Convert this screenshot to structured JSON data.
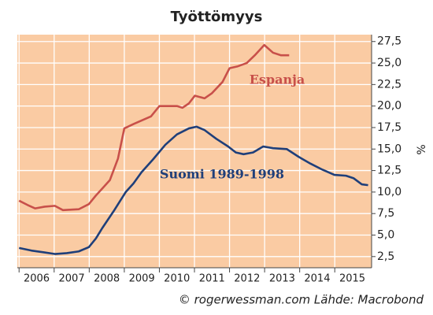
{
  "chart_data": {
    "type": "line",
    "title": "Työttömyys",
    "y_label": "%",
    "footer": "© rogerwessman.com Lähde: Macrobond",
    "grid": true,
    "background": "#facba3",
    "xlim": [
      2005.95,
      2016.05
    ],
    "xticks": [
      2006,
      2007,
      2008,
      2009,
      2010,
      2011,
      2012,
      2013,
      2014,
      2015
    ],
    "ylim": [
      1.2,
      28.3
    ],
    "yticks": [
      {
        "value": 2.5,
        "label": "2,5"
      },
      {
        "value": 5,
        "label": "5,0"
      },
      {
        "value": 7.5,
        "label": "7,5"
      },
      {
        "value": 10,
        "label": "10,0"
      },
      {
        "value": 12.5,
        "label": "12,5"
      },
      {
        "value": 15,
        "label": "15,0"
      },
      {
        "value": 17.5,
        "label": "17,5"
      },
      {
        "value": 20,
        "label": "20,0"
      },
      {
        "value": 22.5,
        "label": "22,5"
      },
      {
        "value": 25,
        "label": "25,0"
      },
      {
        "value": 27.5,
        "label": "27,5"
      }
    ],
    "series": [
      {
        "name": "Espanja",
        "color": "#c8504a",
        "x": [
          2006.0,
          2006.24,
          2006.46,
          2006.73,
          2007.02,
          2007.25,
          2007.7,
          2007.99,
          2008.19,
          2008.37,
          2008.59,
          2008.82,
          2009.0,
          2009.26,
          2009.76,
          2010.0,
          2010.5,
          2010.66,
          2010.84,
          2011.01,
          2011.29,
          2011.5,
          2011.8,
          2012.0,
          2012.22,
          2012.49,
          2012.72,
          2012.99,
          2013.24,
          2013.47,
          2013.7
        ],
        "values": [
          9.0,
          8.5,
          8.1,
          8.3,
          8.4,
          7.9,
          8.0,
          8.6,
          9.6,
          10.4,
          11.4,
          13.9,
          17.4,
          17.9,
          18.8,
          20.0,
          20.0,
          19.8,
          20.3,
          21.2,
          20.9,
          21.5,
          22.8,
          24.4,
          24.6,
          25.0,
          25.9,
          27.1,
          26.2,
          25.9,
          25.9
        ]
      },
      {
        "name": "Suomi 1989-1998",
        "color": "#1f3f7a",
        "x": [
          2006.0,
          2006.35,
          2006.69,
          2007.02,
          2007.36,
          2007.7,
          2007.99,
          2008.19,
          2008.37,
          2008.7,
          2009.04,
          2009.26,
          2009.49,
          2009.82,
          2010.17,
          2010.5,
          2010.84,
          2011.06,
          2011.29,
          2011.62,
          2011.96,
          2012.18,
          2012.4,
          2012.67,
          2012.96,
          2013.24,
          2013.63,
          2013.97,
          2014.31,
          2014.65,
          2014.99,
          2015.32,
          2015.54,
          2015.77,
          2015.95
        ],
        "values": [
          3.5,
          3.2,
          3.0,
          2.8,
          2.9,
          3.1,
          3.6,
          4.6,
          5.8,
          7.8,
          10.0,
          11.0,
          12.3,
          13.8,
          15.5,
          16.7,
          17.4,
          17.6,
          17.2,
          16.2,
          15.3,
          14.6,
          14.4,
          14.6,
          15.3,
          15.1,
          15.0,
          14.1,
          13.3,
          12.6,
          12.0,
          11.9,
          11.6,
          10.9,
          10.8
        ]
      }
    ]
  }
}
